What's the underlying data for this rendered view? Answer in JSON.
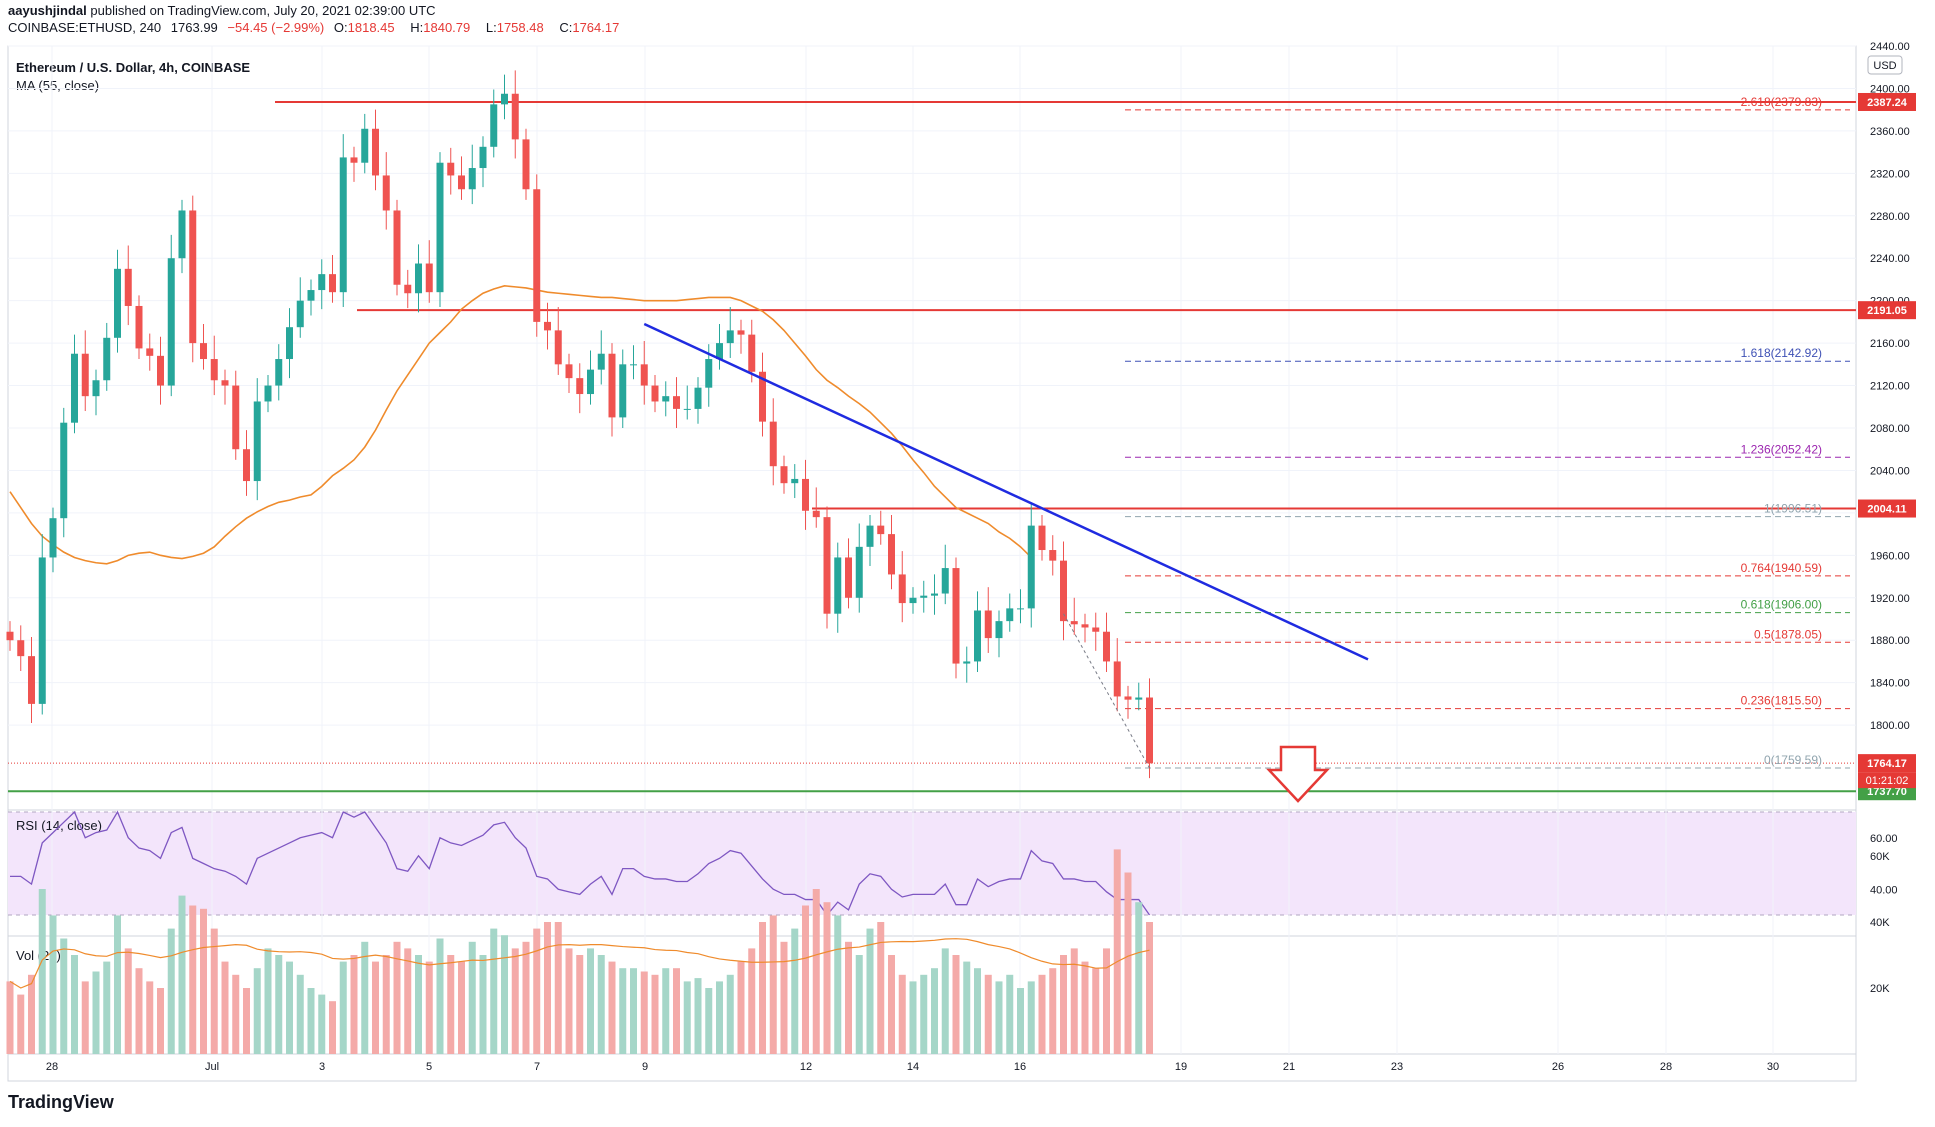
{
  "header": {
    "author": "aayushjindal",
    "published_text": "published on TradingView.com, July 20, 2021 02:39:00 UTC",
    "symbol_line": "COINBASE:ETHUSD, 240",
    "last": "1763.99",
    "change": "−54.45 (−2.99%)",
    "open": "1818.45",
    "high": "1840.79",
    "low": "1758.48",
    "close": "1764.17"
  },
  "chart_title": "Ethereum / U.S. Dollar, 4h, COINBASE",
  "ma_label": "MA (55, close)",
  "rsi_label": "RSI (14, close)",
  "vol_label": "Vol (20)",
  "currency": "USD",
  "brand": "TradingView",
  "countdown": "01:21:02",
  "colors": {
    "up": "#26a69a",
    "down": "#ef5350",
    "ma": "#ef8b2c",
    "trend": "#1f2be0",
    "level": "#e53935",
    "support": "#43a047"
  },
  "chart_data": {
    "type": "candlestick",
    "x_labels": [
      "28",
      "Jul",
      "3",
      "5",
      "7",
      "9",
      "12",
      "14",
      "16",
      "19",
      "21",
      "23",
      "26",
      "28",
      "30"
    ],
    "price_axis": [
      "2440.00",
      "2400.00",
      "2360.00",
      "2320.00",
      "2280.00",
      "2240.00",
      "2200.00",
      "2160.00",
      "2120.00",
      "2080.00",
      "2040.00",
      "2000.00",
      "1960.00",
      "1920.00",
      "1880.00",
      "1840.00",
      "1800.00"
    ],
    "ylim": [
      1720,
      2440
    ],
    "price_tags": [
      "2387.24",
      "2191.05",
      "2004.11",
      "1764.17",
      "1737.70"
    ],
    "horizontal_levels": [
      2387.24,
      2191.05,
      2004.11,
      1737.7
    ],
    "fib_levels": [
      {
        "label": "2.618(2379.83)",
        "value": 2379.83,
        "color": "#e53935"
      },
      {
        "label": "1.618(2142.92)",
        "value": 2142.92,
        "color": "#3f51b5"
      },
      {
        "label": "1.236(2052.42)",
        "value": 2052.42,
        "color": "#9c27b0"
      },
      {
        "label": "1(1996.51)",
        "value": 1996.51,
        "color": "#90a4ae"
      },
      {
        "label": "0.764(1940.59)",
        "value": 1940.59,
        "color": "#e53935"
      },
      {
        "label": "0.618(1906.00)",
        "value": 1906.0,
        "color": "#43a047"
      },
      {
        "label": "0.5(1878.05)",
        "value": 1878.05,
        "color": "#e53935"
      },
      {
        "label": "0.236(1815.50)",
        "value": 1815.5,
        "color": "#e53935"
      },
      {
        "label": "0(1759.59)",
        "value": 1759.59,
        "color": "#90a4ae"
      }
    ],
    "rsi_axis": [
      "60.00",
      "40.00"
    ],
    "volume_axis": [
      "60K",
      "40K",
      "20K"
    ],
    "closes": [
      1880,
      1865,
      1820,
      1958,
      1995,
      2085,
      2150,
      2110,
      2125,
      2165,
      2230,
      2195,
      2155,
      2148,
      2120,
      2240,
      2285,
      2160,
      2145,
      2125,
      2120,
      2060,
      2030,
      2105,
      2120,
      2145,
      2175,
      2200,
      2210,
      2225,
      2208,
      2335,
      2330,
      2362,
      2318,
      2285,
      2215,
      2207,
      2235,
      2208,
      2330,
      2318,
      2305,
      2325,
      2345,
      2385,
      2395,
      2352,
      2305,
      2180,
      2172,
      2140,
      2127,
      2112,
      2135,
      2150,
      2090,
      2140,
      2140,
      2120,
      2105,
      2110,
      2098,
      2098,
      2118,
      2145,
      2160,
      2172,
      2168,
      2133,
      2086,
      2044,
      2028,
      2032,
      2002,
      1996,
      1905,
      1958,
      1920,
      1968,
      1988,
      1980,
      1942,
      1915,
      1920,
      1922,
      1924,
      1948,
      1858,
      1860,
      1908,
      1882,
      1898,
      1910,
      1910,
      1988,
      1965,
      1955,
      1898,
      1895,
      1892,
      1888,
      1860,
      1827,
      1824,
      1826,
      1764
    ],
    "ma55": [
      2020,
      2005,
      1990,
      1978,
      1970,
      1963,
      1958,
      1955,
      1953,
      1952,
      1955,
      1960,
      1962,
      1963,
      1960,
      1958,
      1957,
      1959,
      1962,
      1968,
      1978,
      1987,
      1995,
      2001,
      2006,
      2010,
      2012,
      2015,
      2017,
      2025,
      2035,
      2042,
      2050,
      2062,
      2078,
      2097,
      2115,
      2130,
      2145,
      2160,
      2170,
      2180,
      2192,
      2200,
      2207,
      2211,
      2214,
      2213,
      2212,
      2210,
      2208,
      2207,
      2206,
      2205,
      2204,
      2203,
      2203,
      2202,
      2201,
      2200,
      2200,
      2200,
      2200,
      2201,
      2202,
      2203,
      2203,
      2203,
      2200,
      2195,
      2190,
      2182,
      2172,
      2160,
      2148,
      2135,
      2125,
      2118,
      2110,
      2103,
      2095,
      2085,
      2075,
      2063,
      2050,
      2038,
      2025,
      2015,
      2005,
      2000,
      1995,
      1990,
      1982,
      1976,
      1968,
      1958
    ],
    "rsi": [
      45,
      45,
      42,
      58,
      62,
      66,
      70,
      60,
      62,
      63,
      70,
      60,
      56,
      55,
      52,
      62,
      64,
      52,
      50,
      48,
      47,
      45,
      42,
      52,
      54,
      56,
      58,
      60,
      61,
      62,
      60,
      70,
      68,
      70,
      64,
      58,
      48,
      47,
      53,
      48,
      60,
      58,
      57,
      59,
      61,
      65,
      66,
      60,
      56,
      45,
      44,
      40,
      39,
      38,
      42,
      45,
      38,
      48,
      48,
      45,
      44,
      44,
      43,
      43,
      46,
      50,
      52,
      55,
      54,
      49,
      44,
      40,
      38,
      38,
      36,
      36,
      30,
      35,
      32,
      42,
      46,
      45,
      40,
      37,
      38,
      38,
      38,
      42,
      34,
      34,
      44,
      41,
      43,
      44,
      44,
      55,
      51,
      50,
      44,
      44,
      43,
      43,
      39,
      36,
      36,
      36,
      30
    ],
    "volume": [
      22000,
      18000,
      24000,
      50000,
      42000,
      35000,
      30000,
      22000,
      25000,
      28000,
      42000,
      32000,
      26000,
      22000,
      20000,
      38000,
      48000,
      45000,
      44000,
      38000,
      28000,
      24000,
      20000,
      26000,
      32000,
      30000,
      28000,
      24000,
      20000,
      18000,
      16000,
      28000,
      30000,
      34000,
      28000,
      30000,
      34000,
      32000,
      30000,
      28000,
      35000,
      30000,
      28000,
      34000,
      30000,
      38000,
      36000,
      32000,
      34000,
      38000,
      40000,
      40000,
      32000,
      30000,
      32000,
      30000,
      28000,
      26000,
      26000,
      25000,
      24000,
      26000,
      26000,
      22000,
      23000,
      20000,
      22000,
      24000,
      28000,
      32000,
      40000,
      42000,
      34000,
      38000,
      45000,
      50000,
      46000,
      42000,
      34000,
      30000,
      38000,
      40000,
      30000,
      24000,
      22000,
      24000,
      26000,
      32000,
      30000,
      28000,
      26000,
      24000,
      22000,
      24000,
      20000,
      22000,
      24000,
      26000,
      30000,
      32000,
      28000,
      26000,
      32000,
      62000,
      55000,
      46000,
      40000
    ]
  }
}
